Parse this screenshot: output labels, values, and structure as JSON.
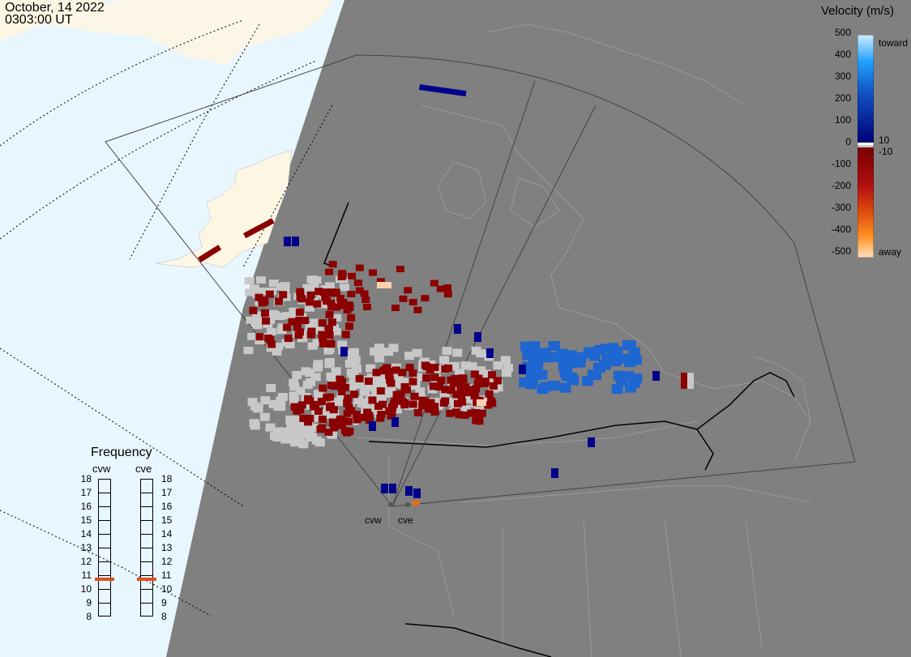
{
  "header": {
    "date": "October, 14 2022",
    "time": "0303:00 UT"
  },
  "frequency_panel": {
    "title": "Frequency",
    "radar_labels": [
      "cvw",
      "cve"
    ],
    "ticks": [
      "18",
      "17",
      "16",
      "15",
      "14",
      "13",
      "12",
      "11",
      "10",
      "9",
      "8"
    ],
    "selected": {
      "cvw": 11,
      "cve": 11
    },
    "marker_color": "#e0501c"
  },
  "velocity_legend": {
    "title": "Velocity (m/s)",
    "ticks": [
      "500",
      "400",
      "300",
      "200",
      "100",
      "0",
      "-100",
      "-200",
      "-300",
      "-400",
      "-500"
    ],
    "toward_label": "toward",
    "pos_min_label": "10",
    "neg_min_label": "-10",
    "away_label": "away"
  },
  "sites": [
    "cvw",
    "cve"
  ],
  "colors": {
    "ocean": "#e8f6ff",
    "land_day": "#fdf6e3",
    "night": "#808080",
    "ground_scatter": "#c8c8c8",
    "away_dark": "#8b0000",
    "toward_dark": "#00008b",
    "toward_mid": "#1e66d0"
  }
}
